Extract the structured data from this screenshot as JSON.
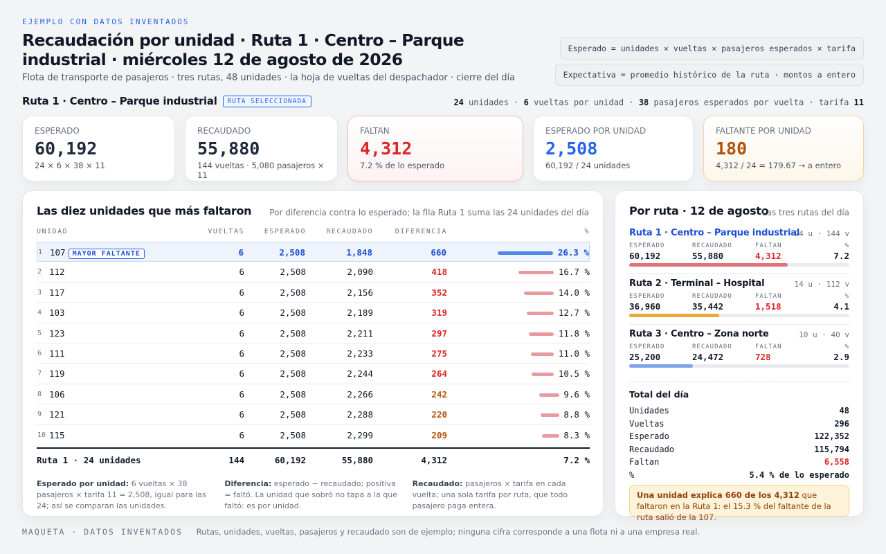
{
  "header": {
    "eyebrow": "EJEMPLO CON DATOS INVENTADOS",
    "title": "Recaudación por unidad · Ruta 1 · Centro – Parque industrial · miércoles 12 de agosto de 2026",
    "subtitle": "Flota de transporte de pasajeros · tres rutas, 48 unidades · la hoja de vueltas del despachador · cierre del día",
    "formula1": "Esperado = unidades × vueltas × pasajeros esperados × tarifa",
    "formula2": "Expectativa = promedio histórico de la ruta · montos a entero"
  },
  "route": {
    "name": "Ruta 1 · Centro – Parque industrial",
    "badge": "RUTA SELECCIONADA",
    "units": "24",
    "units_label": "unidades",
    "trips": "6",
    "trips_label": "vueltas por unidad",
    "pax": "38",
    "pax_label": "pasajeros esperados por vuelta",
    "fare_label": "tarifa",
    "fare": "11"
  },
  "kpis": [
    {
      "label": "ESPERADO",
      "value": "60,192",
      "sub": "24 × 6 × 38 × 11",
      "color": "#1e293b"
    },
    {
      "label": "RECAUDADO",
      "value": "55,880",
      "sub": "144 vueltas · 5,080 pasajeros × 11",
      "color": "#1e293b"
    },
    {
      "label": "FALTAN",
      "value": "4,312",
      "sub": "7.2 % de lo esperado",
      "color": "#dc2626"
    },
    {
      "label": "ESPERADO POR UNIDAD",
      "value": "2,508",
      "sub": "60,192 / 24 unidades",
      "color": "#2563eb"
    },
    {
      "label": "FALTANTE POR UNIDAD",
      "value": "180",
      "sub": "4,312 / 24 = 179.67 → a entero",
      "color": "#b45309"
    }
  ],
  "table": {
    "title": "Las diez unidades que más faltaron",
    "note": "Por diferencia contra lo esperado; la fila Ruta 1 suma las 24 unidades del día",
    "headers": {
      "unit": "UNIDAD",
      "trips": "VUELTAS",
      "expected": "ESPERADO",
      "collected": "RECAUDADO",
      "diff": "DIFERENCIA",
      "pct": "%"
    },
    "top_badge": "MAYOR FALTANTE",
    "rows": [
      {
        "idx": "1",
        "unit": "107",
        "trips": "6",
        "expected": "2,508",
        "collected": "1,848",
        "diff": "660",
        "pct": "26.3 %",
        "pct_value": 26.3
      },
      {
        "idx": "2",
        "unit": "112",
        "trips": "6",
        "expected": "2,508",
        "collected": "2,090",
        "diff": "418",
        "pct": "16.7 %",
        "pct_value": 16.7
      },
      {
        "idx": "3",
        "unit": "117",
        "trips": "6",
        "expected": "2,508",
        "collected": "2,156",
        "diff": "352",
        "pct": "14.0 %",
        "pct_value": 14.0
      },
      {
        "idx": "4",
        "unit": "103",
        "trips": "6",
        "expected": "2,508",
        "collected": "2,189",
        "diff": "319",
        "pct": "12.7 %",
        "pct_value": 12.7
      },
      {
        "idx": "5",
        "unit": "123",
        "trips": "6",
        "expected": "2,508",
        "collected": "2,211",
        "diff": "297",
        "pct": "11.8 %",
        "pct_value": 11.8
      },
      {
        "idx": "6",
        "unit": "111",
        "trips": "6",
        "expected": "2,508",
        "collected": "2,233",
        "diff": "275",
        "pct": "11.0 %",
        "pct_value": 11.0
      },
      {
        "idx": "7",
        "unit": "119",
        "trips": "6",
        "expected": "2,508",
        "collected": "2,244",
        "diff": "264",
        "pct": "10.5 %",
        "pct_value": 10.5
      },
      {
        "idx": "8",
        "unit": "106",
        "trips": "6",
        "expected": "2,508",
        "collected": "2,266",
        "diff": "242",
        "pct": "9.6 %",
        "pct_value": 9.6
      },
      {
        "idx": "9",
        "unit": "121",
        "trips": "6",
        "expected": "2,508",
        "collected": "2,288",
        "diff": "220",
        "pct": "8.8 %",
        "pct_value": 8.8
      },
      {
        "idx": "10",
        "unit": "115",
        "trips": "6",
        "expected": "2,508",
        "collected": "2,299",
        "diff": "209",
        "pct": "8.3 %",
        "pct_value": 8.3
      }
    ],
    "total": {
      "label": "Ruta 1 · 24 unidades",
      "trips": "144",
      "expected": "60,192",
      "collected": "55,880",
      "diff": "4,312",
      "pct": "7.2 %"
    },
    "notes": [
      {
        "term": "Esperado por unidad:",
        "text": " 6 vueltas × 38 pasajeros × tarifa 11 = 2,508, igual para las 24; así se comparan las unidades."
      },
      {
        "term": "Diferencia:",
        "text": " esperado − recaudado; positiva = faltó. La unidad que sobró no tapa a la que faltó: es por unidad."
      },
      {
        "term": "Recaudado:",
        "text": " pasajeros × tarifa en cada vuelta; una sola tarifa por ruta, que todo pasajero paga entera."
      }
    ]
  },
  "side": {
    "title": "Por ruta · 12 de agosto",
    "note": "Las tres rutas del día",
    "col_expected": "ESPERADO",
    "col_collected": "RECAUDADO",
    "col_missing": "FALTAN",
    "col_pct": "%",
    "routes": [
      {
        "name": "Ruta 1 · Centro – Parque industrial",
        "meta": "24 u · 144 v",
        "expected": "60,192",
        "collected": "55,880",
        "missing": "4,312",
        "pct": "7.2",
        "fill": 0.72,
        "color": "#e0747c"
      },
      {
        "name": "Ruta 2 · Terminal – Hospital",
        "meta": "14 u · 112 v",
        "expected": "36,960",
        "collected": "35,442",
        "missing": "1,518",
        "pct": "4.1",
        "fill": 0.41,
        "color": "#eba83a"
      },
      {
        "name": "Ruta 3 · Centro – Zona norte",
        "meta": "10 u · 40 v",
        "expected": "25,200",
        "collected": "24,472",
        "missing": "728",
        "pct": "2.9",
        "fill": 0.29,
        "color": "#7ea5ea"
      }
    ],
    "total_title": "Total del día",
    "totals": [
      {
        "label": "Unidades",
        "value": "48"
      },
      {
        "label": "Vueltas",
        "value": "296"
      },
      {
        "label": "Esperado",
        "value": "122,352"
      },
      {
        "label": "Recaudado",
        "value": "115,794"
      },
      {
        "label": "Faltan",
        "value": "6,558"
      },
      {
        "label": "%",
        "value": "5.4 % de lo esperado"
      }
    ],
    "callout_bold": "Una unidad explica 660 de los 4,312",
    "callout_text": " que faltaron en la Ruta 1: el 15.3 % del faltante de la ruta salió de la 107."
  },
  "footer": {
    "label": "MAQUETA · DATOS INVENTADOS",
    "text": "Rutas, unidades, vueltas, pasajeros y recaudado son de ejemplo; ninguna cifra corresponde a una flota ni a una empresa real."
  }
}
